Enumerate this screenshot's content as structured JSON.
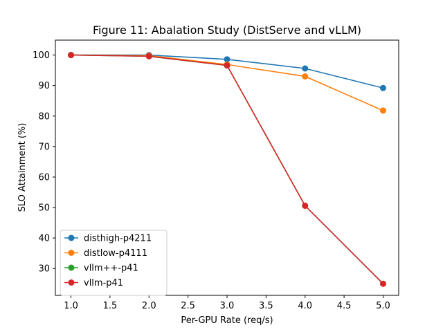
{
  "chart_data": {
    "type": "line",
    "title": "Figure 11: Abalation Study (DistServe and vLLM)",
    "xlabel": "Per-GPU Rate (req/s)",
    "ylabel": "SLO Attainment (%)",
    "xlim": [
      0.8,
      5.2
    ],
    "ylim": [
      21.2,
      104.9
    ],
    "xticks": [
      1.0,
      1.5,
      2.0,
      2.5,
      3.0,
      3.5,
      4.0,
      4.5,
      5.0
    ],
    "xtick_labels": [
      "1.0",
      "1.5",
      "2.0",
      "2.5",
      "3.0",
      "3.5",
      "4.0",
      "4.5",
      "5.0"
    ],
    "yticks": [
      30,
      40,
      50,
      60,
      70,
      80,
      90,
      100
    ],
    "ytick_labels": [
      "30",
      "40",
      "50",
      "60",
      "70",
      "80",
      "90",
      "100"
    ],
    "grid": false,
    "legend_position": "lower-left",
    "x": [
      1,
      2,
      3,
      4,
      5
    ],
    "series": [
      {
        "name": "disthigh-p4211",
        "color": "#1f77b4",
        "values": [
          100,
          100,
          98.6,
          95.6,
          89.2
        ]
      },
      {
        "name": "distlow-p4111",
        "color": "#ff7f0e",
        "values": [
          100,
          99.8,
          96.9,
          93.0,
          81.8
        ]
      },
      {
        "name": "vllm++-p41",
        "color": "#2ca02c",
        "values": [
          100,
          99.6,
          96.6,
          50.6,
          25.0
        ]
      },
      {
        "name": "vllm-p41",
        "color": "#d62728",
        "values": [
          100,
          99.6,
          96.6,
          50.6,
          25.0
        ]
      }
    ]
  }
}
